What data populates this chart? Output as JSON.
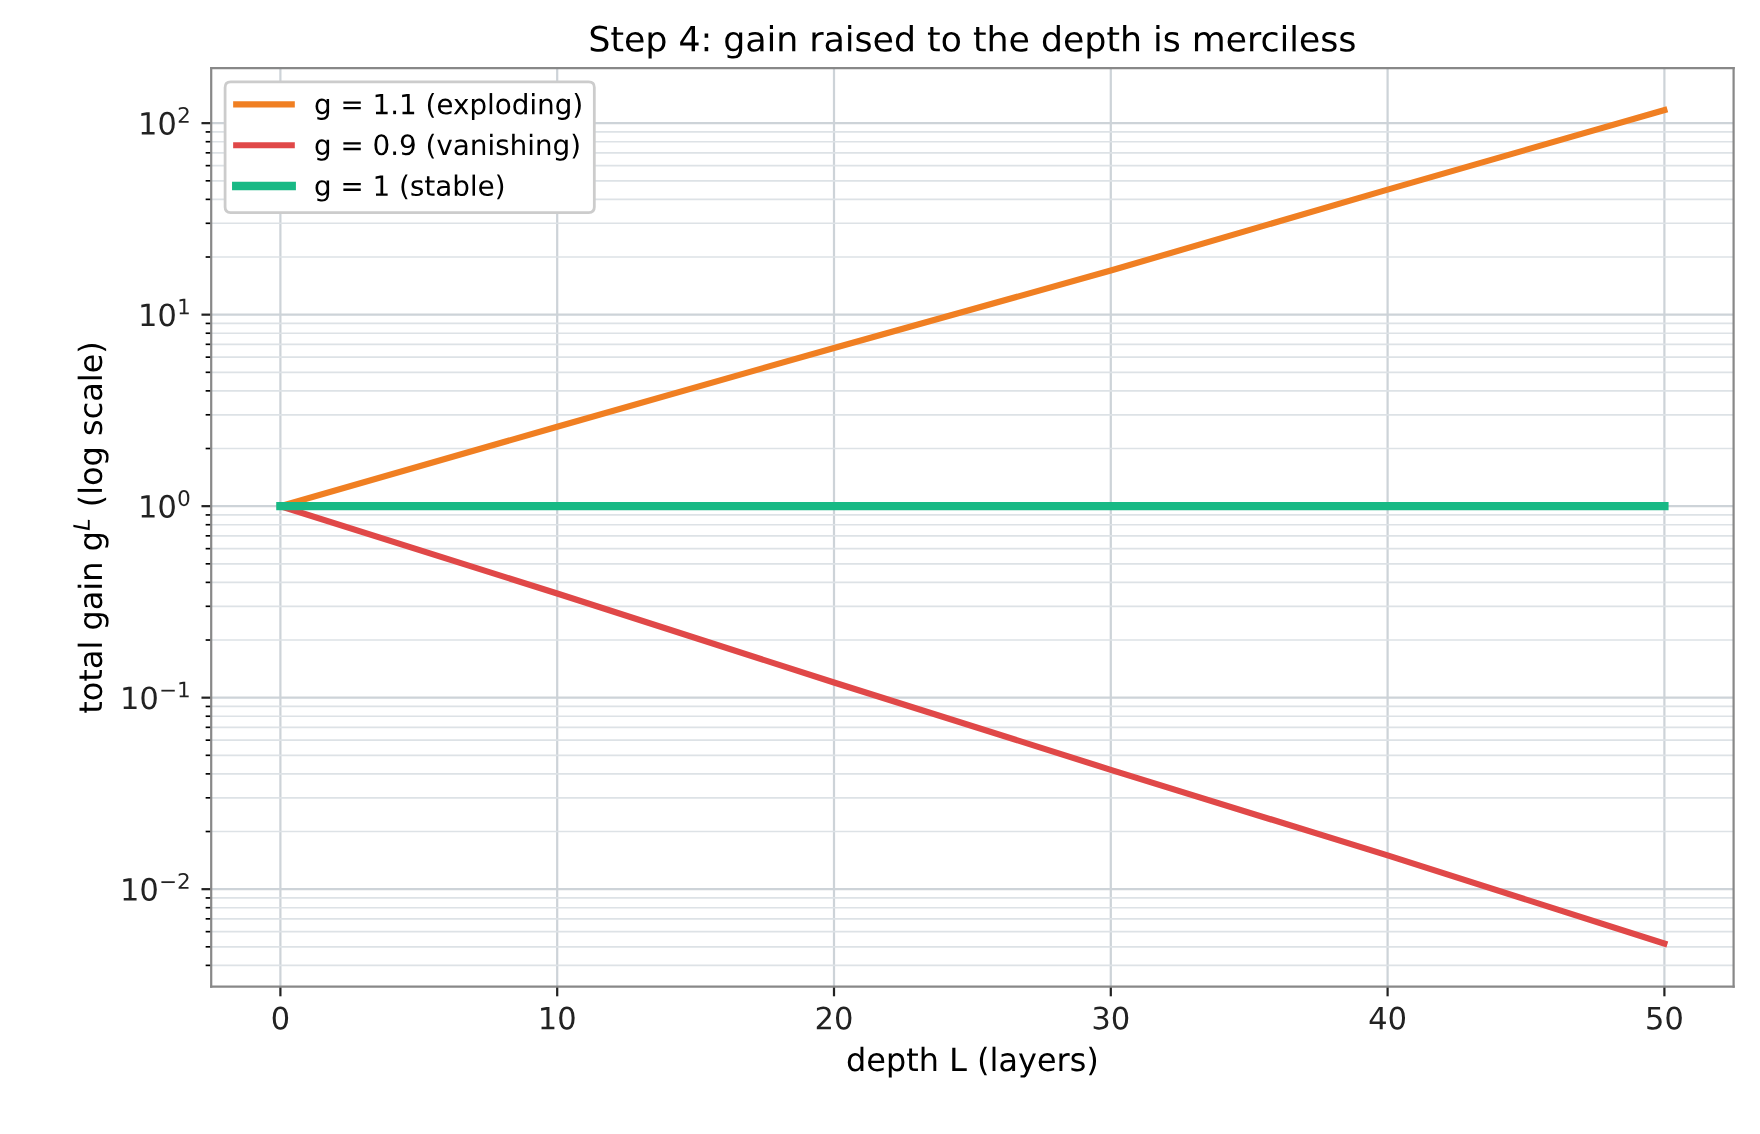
{
  "chart_data": {
    "type": "line",
    "title": "Step 4: gain raised to the depth is merciless",
    "xlabel": "depth L (layers)",
    "ylabel": "total gain g$^{L}$ (log scale)",
    "x": [
      0,
      10,
      20,
      30,
      40,
      50
    ],
    "series": [
      {
        "name": "g = 1.1 (exploding)",
        "color": "#f07f22",
        "values": [
          1,
          2.6,
          6.7,
          17,
          45,
          117
        ]
      },
      {
        "name": "g = 0.9 (vanishing)",
        "color": "#e04848",
        "values": [
          1,
          0.35,
          0.12,
          0.042,
          0.015,
          0.0052
        ]
      },
      {
        "name": "g = 1 (stable)",
        "color": "#18b985",
        "values": [
          1,
          1,
          1,
          1,
          1,
          1
        ]
      }
    ],
    "log": "y",
    "xlim": [
      -2.5,
      52.5
    ],
    "ylim": [
      0.0031,
      194
    ],
    "xticks": [
      0,
      10,
      20,
      30,
      40,
      50
    ],
    "yticks": [
      {
        "value": 0.01,
        "label": "10$^{−2}$"
      },
      {
        "value": 0.1,
        "label": "10$^{−1}$"
      },
      {
        "value": 1,
        "label": "10$^{0}$"
      },
      {
        "value": 10,
        "label": "10$^{1}$"
      },
      {
        "value": 100,
        "label": "10$^{2}$"
      }
    ],
    "grid": true,
    "legend": "top left",
    "marker": "none",
    "line_style": "solid"
  }
}
